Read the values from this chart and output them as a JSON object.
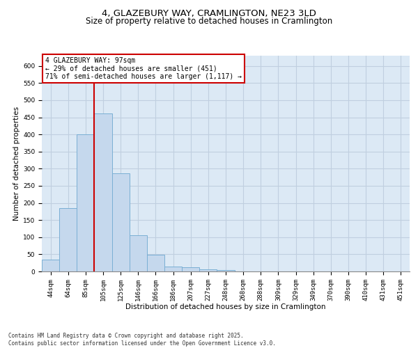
{
  "title_line1": "4, GLAZEBURY WAY, CRAMLINGTON, NE23 3LD",
  "title_line2": "Size of property relative to detached houses in Cramlington",
  "xlabel": "Distribution of detached houses by size in Cramlington",
  "ylabel": "Number of detached properties",
  "bar_values": [
    35,
    185,
    400,
    462,
    287,
    105,
    48,
    15,
    13,
    7,
    4,
    1,
    1,
    1,
    1,
    1,
    1,
    1,
    1,
    1,
    1
  ],
  "categories": [
    "44sqm",
    "64sqm",
    "85sqm",
    "105sqm",
    "125sqm",
    "146sqm",
    "166sqm",
    "186sqm",
    "207sqm",
    "227sqm",
    "248sqm",
    "268sqm",
    "288sqm",
    "309sqm",
    "329sqm",
    "349sqm",
    "370sqm",
    "390sqm",
    "410sqm",
    "431sqm",
    "451sqm"
  ],
  "bar_color": "#c5d8ed",
  "bar_edge_color": "#7aafd4",
  "grid_color": "#c0cfe0",
  "background_color": "#dce9f5",
  "vline_color": "#cc0000",
  "vline_pos": 2.5,
  "annotation_text": "4 GLAZEBURY WAY: 97sqm\n← 29% of detached houses are smaller (451)\n71% of semi-detached houses are larger (1,117) →",
  "ylim": [
    0,
    630
  ],
  "yticks": [
    0,
    50,
    100,
    150,
    200,
    250,
    300,
    350,
    400,
    450,
    500,
    550,
    600
  ],
  "footer_text": "Contains HM Land Registry data © Crown copyright and database right 2025.\nContains public sector information licensed under the Open Government Licence v3.0.",
  "title_fontsize": 9.5,
  "subtitle_fontsize": 8.5,
  "axis_label_fontsize": 7.5,
  "tick_fontsize": 6.5,
  "annotation_fontsize": 7,
  "footer_fontsize": 5.5
}
